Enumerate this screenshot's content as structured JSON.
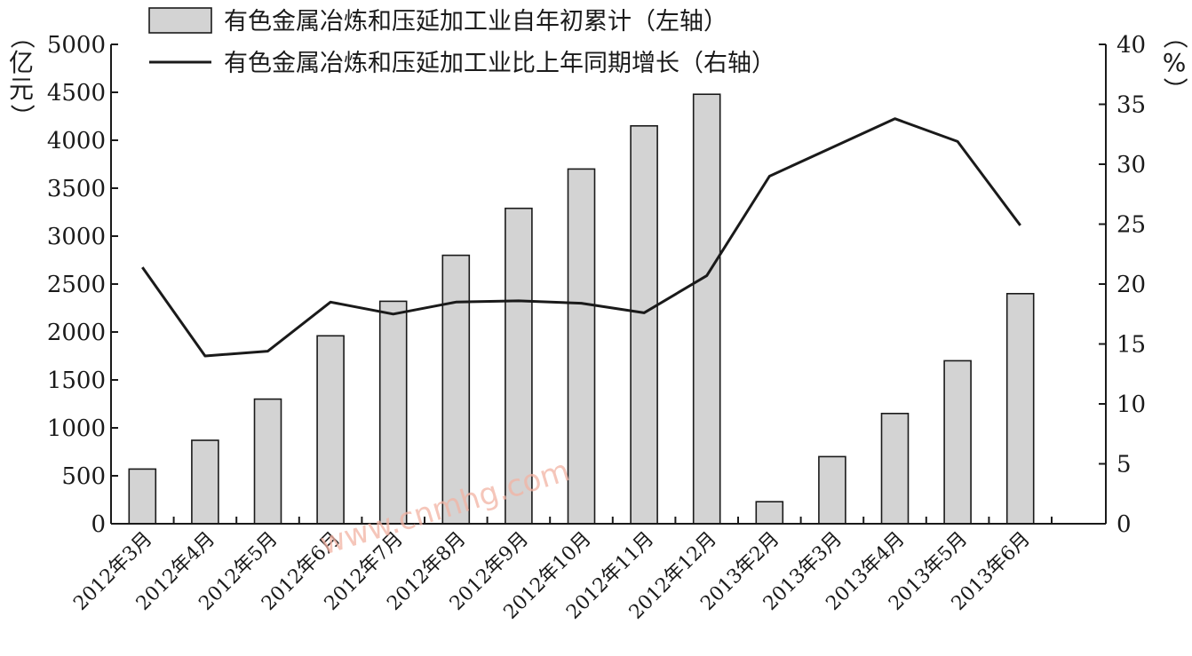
{
  "chart_data": {
    "type": "bar",
    "categories": [
      "2012年3月",
      "2012年4月",
      "2012年5月",
      "2012年6月",
      "2012年7月",
      "2012年8月",
      "2012年9月",
      "2012年10月",
      "2012年11月",
      "2012年12月",
      "2013年2月",
      "2013年3月",
      "2013年4月",
      "2013年5月",
      "2013年6月"
    ],
    "series": [
      {
        "name": "有色金属冶炼和压延加工业自年初累计（左轴）",
        "type": "bar",
        "axis": "left",
        "color": "#d3d3d3",
        "values": [
          570,
          870,
          1300,
          1960,
          2320,
          2800,
          3290,
          3700,
          4150,
          4480,
          230,
          700,
          1150,
          1700,
          2400
        ]
      },
      {
        "name": "有色金属冶炼和压延加工业比上年同期增长（右轴）",
        "type": "line",
        "axis": "right",
        "color": "#1a1a1a",
        "values": [
          21.4,
          14.0,
          14.4,
          18.5,
          17.5,
          18.5,
          18.6,
          18.4,
          17.6,
          20.7,
          29.0,
          31.4,
          33.8,
          31.9,
          24.9
        ]
      }
    ],
    "y_left": {
      "label": "（亿元）",
      "ylim": [
        0,
        5000
      ],
      "ticks": [
        "0",
        "500",
        "1000",
        "1500",
        "2000",
        "2500",
        "3000",
        "3500",
        "4000",
        "4500",
        "5000"
      ]
    },
    "y_right": {
      "label": "（%）",
      "ylim": [
        0,
        40
      ],
      "ticks": [
        "0",
        "5",
        "10",
        "15",
        "20",
        "25",
        "30",
        "35",
        "40"
      ]
    },
    "grid": false,
    "legend_position": "top"
  },
  "watermark": "www.cnmhg.com"
}
